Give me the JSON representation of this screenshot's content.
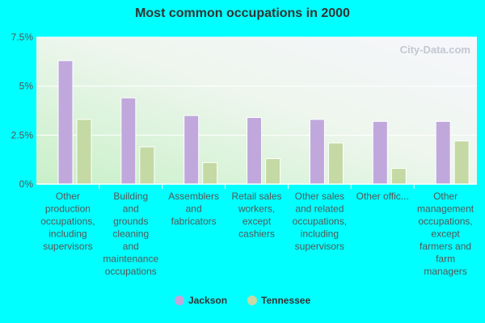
{
  "chart_data": {
    "type": "bar",
    "title": "Most common occupations in 2000",
    "xlabel": "",
    "ylabel": "",
    "ylim": [
      0,
      7.5
    ],
    "yticks": [
      0,
      2.5,
      5,
      7.5
    ],
    "ytick_labels": [
      "0%",
      "2.5%",
      "5%",
      "7.5%"
    ],
    "categories": [
      "Other production occupations, including supervisors",
      "Building and grounds cleaning and maintenance occupations",
      "Assemblers and fabricators",
      "Retail sales workers, except cashiers",
      "Other sales and related occupations, including supervisors",
      "Other offic...",
      "Other management occupations, except farmers and farm managers"
    ],
    "category_label_lines": [
      [
        "Other",
        "production",
        "occupations,",
        "including",
        "supervisors"
      ],
      [
        "Building",
        "and",
        "grounds",
        "cleaning",
        "and",
        "maintenance",
        "occupations"
      ],
      [
        "Assemblers",
        "and",
        "fabricators"
      ],
      [
        "Retail sales",
        "workers,",
        "except",
        "cashiers"
      ],
      [
        "Other sales",
        "and related",
        "occupations,",
        "including",
        "supervisors"
      ],
      [
        "Other offic..."
      ],
      [
        "Other",
        "management",
        "occupations,",
        "except",
        "farmers and",
        "farm",
        "managers"
      ]
    ],
    "series": [
      {
        "name": "Jackson",
        "color": "#c0a8dc",
        "values": [
          6.3,
          4.4,
          3.5,
          3.4,
          3.3,
          3.2,
          3.2
        ]
      },
      {
        "name": "Tennessee",
        "color": "#c4d9a4",
        "values": [
          3.3,
          1.9,
          1.1,
          1.3,
          2.1,
          0.8,
          2.2
        ]
      }
    ],
    "legend_position": "bottom",
    "grid": true,
    "watermark": "City-Data.com"
  }
}
